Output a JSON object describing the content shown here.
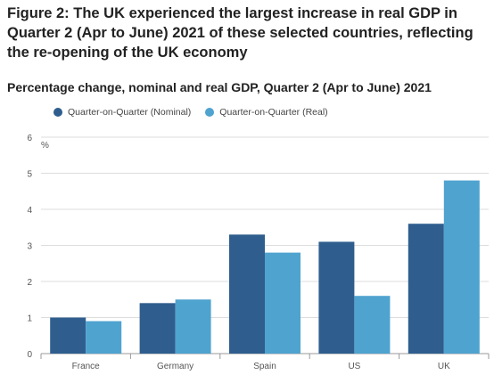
{
  "title": "Figure 2: The UK experienced the largest increase in real GDP in Quarter 2 (Apr to June) 2021 of these selected countries, reflecting the re-opening of the UK economy",
  "subtitle": "Percentage change, nominal and real GDP, Quarter 2 (Apr to June) 2021",
  "colors": {
    "nominal": "#2f5e8e",
    "real": "#4fa3cf",
    "grid": "#dddddd",
    "axis": "#999999"
  },
  "chart_data": {
    "type": "bar",
    "categories": [
      "France",
      "Germany",
      "Spain",
      "US",
      "UK"
    ],
    "series": [
      {
        "name": "Quarter-on-Quarter (Nominal)",
        "values": [
          1.0,
          1.4,
          3.3,
          3.1,
          3.6
        ]
      },
      {
        "name": "Quarter-on-Quarter (Real)",
        "values": [
          0.9,
          1.5,
          2.8,
          1.6,
          4.8
        ]
      }
    ],
    "ylabel": "%",
    "ylim": [
      0,
      6
    ],
    "yticks": [
      0,
      1,
      2,
      3,
      4,
      5,
      6
    ],
    "grid": true,
    "legend": "top-left"
  }
}
